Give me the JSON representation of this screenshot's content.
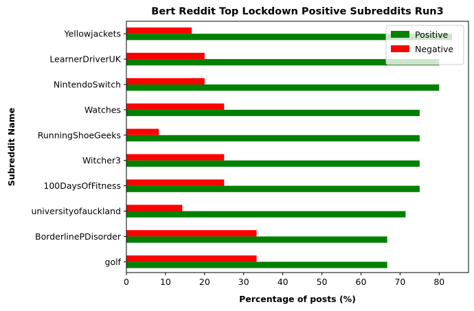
{
  "chart_data": {
    "type": "bar",
    "orientation": "horizontal",
    "title": "Bert Reddit Top Lockdown Positive Subreddits Run3",
    "xlabel": "Percentage of posts (%)",
    "ylabel": "Subreddit Name",
    "xlim": [
      0,
      87.5
    ],
    "xticks": [
      0,
      10,
      20,
      30,
      40,
      50,
      60,
      70,
      80
    ],
    "grid": false,
    "legend_position": "top-right",
    "categories": [
      "golf",
      "BorderlinePDisorder",
      "universityofauckland",
      "100DaysOfFitness",
      "Witcher3",
      "RunningShoeGeeks",
      "Watches",
      "NintendoSwitch",
      "LearnerDriverUK",
      "Yellowjackets"
    ],
    "series": [
      {
        "name": "Positive",
        "color": "#008000",
        "values": [
          66.7,
          66.7,
          71.4,
          75.0,
          75.0,
          75.0,
          75.0,
          80.0,
          80.0,
          83.3
        ]
      },
      {
        "name": "Negative",
        "color": "#ff0000",
        "values": [
          33.3,
          33.3,
          14.3,
          25.0,
          25.0,
          8.3,
          25.0,
          20.0,
          20.0,
          16.7
        ]
      }
    ]
  }
}
